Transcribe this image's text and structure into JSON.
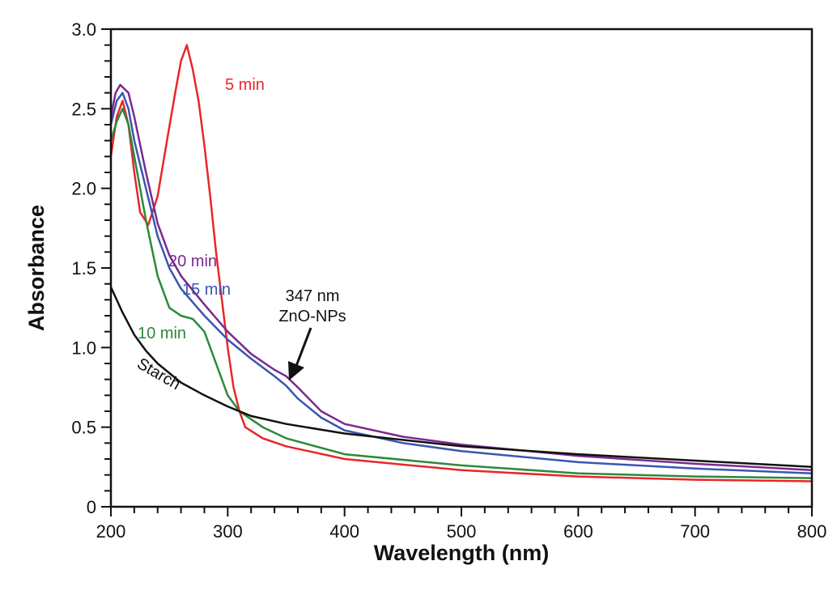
{
  "chart_data": {
    "type": "line",
    "title": "",
    "xlabel": "Wavelength (nm)",
    "ylabel": "Absorbance",
    "xlim": [
      200,
      800
    ],
    "ylim": [
      0,
      3.0
    ],
    "xticks": [
      "200",
      "300",
      "400",
      "500",
      "600",
      "700",
      "800"
    ],
    "yticks": [
      "0",
      "0.5",
      "1.0",
      "1.5",
      "2.0",
      "2.5",
      "3.0"
    ],
    "grid": false,
    "legend": "none (inline labels)",
    "series": [
      {
        "name": "5 min",
        "color": "#e8262a",
        "x": [
          200,
          205,
          210,
          215,
          220,
          225,
          232,
          240,
          248,
          255,
          260,
          265,
          270,
          275,
          280,
          285,
          290,
          295,
          300,
          305,
          310,
          315,
          330,
          350,
          400,
          500,
          600,
          700,
          800
        ],
        "y": [
          2.2,
          2.45,
          2.55,
          2.4,
          2.1,
          1.85,
          1.77,
          1.95,
          2.3,
          2.6,
          2.8,
          2.9,
          2.75,
          2.55,
          2.27,
          1.95,
          1.6,
          1.3,
          1.0,
          0.75,
          0.6,
          0.5,
          0.43,
          0.38,
          0.3,
          0.23,
          0.19,
          0.17,
          0.16
        ]
      },
      {
        "name": "10 min",
        "color": "#2a8a3a",
        "x": [
          200,
          205,
          210,
          215,
          220,
          230,
          240,
          250,
          260,
          270,
          280,
          290,
          300,
          310,
          330,
          350,
          400,
          500,
          600,
          700,
          800
        ],
        "y": [
          2.3,
          2.42,
          2.5,
          2.4,
          2.2,
          1.8,
          1.45,
          1.25,
          1.2,
          1.18,
          1.1,
          0.9,
          0.7,
          0.6,
          0.5,
          0.43,
          0.33,
          0.26,
          0.21,
          0.19,
          0.18
        ]
      },
      {
        "name": "15 min",
        "color": "#3a56b0",
        "x": [
          200,
          205,
          210,
          215,
          220,
          230,
          240,
          250,
          260,
          280,
          300,
          320,
          340,
          350,
          360,
          380,
          400,
          450,
          500,
          600,
          700,
          800
        ],
        "y": [
          2.4,
          2.55,
          2.6,
          2.5,
          2.3,
          2.0,
          1.7,
          1.5,
          1.37,
          1.2,
          1.05,
          0.93,
          0.82,
          0.76,
          0.68,
          0.56,
          0.48,
          0.4,
          0.35,
          0.28,
          0.24,
          0.21
        ]
      },
      {
        "name": "20 min",
        "color": "#7a2a8e",
        "x": [
          200,
          204,
          208,
          215,
          220,
          230,
          240,
          250,
          260,
          280,
          300,
          320,
          340,
          350,
          360,
          380,
          400,
          450,
          500,
          600,
          700,
          800
        ],
        "y": [
          2.45,
          2.6,
          2.65,
          2.6,
          2.45,
          2.1,
          1.78,
          1.58,
          1.45,
          1.27,
          1.1,
          0.96,
          0.86,
          0.82,
          0.75,
          0.6,
          0.52,
          0.44,
          0.39,
          0.32,
          0.27,
          0.23
        ]
      },
      {
        "name": "Starch",
        "color": "#111111",
        "x": [
          200,
          210,
          220,
          230,
          240,
          260,
          280,
          300,
          320,
          350,
          400,
          500,
          600,
          700,
          800
        ],
        "y": [
          1.38,
          1.22,
          1.08,
          0.98,
          0.9,
          0.78,
          0.7,
          0.63,
          0.57,
          0.52,
          0.46,
          0.38,
          0.33,
          0.29,
          0.25
        ]
      }
    ],
    "annotations": {
      "line1": "347 nm",
      "line2": "ZnO-NPs",
      "arrow_target_x": 347
    }
  }
}
